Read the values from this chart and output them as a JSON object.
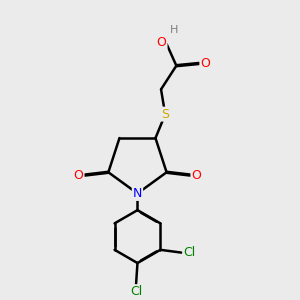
{
  "bg_color": "#ebebeb",
  "bond_color": "#000000",
  "colors": {
    "O": "#ff0000",
    "N": "#0000ff",
    "S": "#ccaa00",
    "Cl": "#008000",
    "H": "#808080",
    "C": "#000000"
  },
  "lw": 1.8
}
